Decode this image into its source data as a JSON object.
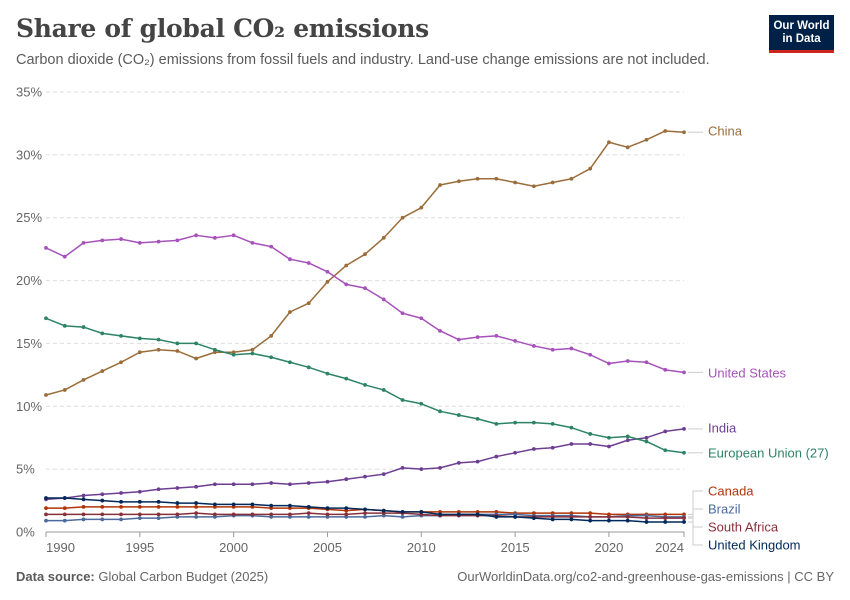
{
  "header": {
    "title": "Share of global CO₂ emissions",
    "subtitle": "Carbon dioxide (CO₂) emissions from fossil fuels and industry. Land-use change emissions are not included.",
    "logo_line1": "Our World",
    "logo_line2": "in Data"
  },
  "footer": {
    "source_label": "Data source:",
    "source_value": "Global Carbon Budget (2025)",
    "credit": "OurWorldinData.org/co2-and-greenhouse-gas-emissions | CC BY"
  },
  "chart_data": {
    "type": "line",
    "title": "Share of global CO₂ emissions",
    "subtitle": "Carbon dioxide (CO₂) emissions from fossil fuels and industry. Land-use change emissions are not included.",
    "xlabel": "",
    "ylabel": "",
    "xlim": [
      1990,
      2024
    ],
    "ylim": [
      0,
      35
    ],
    "x_ticks": [
      1990,
      1995,
      2000,
      2005,
      2010,
      2015,
      2020,
      2024
    ],
    "y_ticks": [
      0,
      5,
      10,
      15,
      20,
      25,
      30,
      35
    ],
    "y_tick_labels": [
      "0%",
      "5%",
      "10%",
      "15%",
      "20%",
      "25%",
      "30%",
      "35%"
    ],
    "grid": "horizontal dashed",
    "legend": "line labels at right",
    "x": [
      1990,
      1991,
      1992,
      1993,
      1994,
      1995,
      1996,
      1997,
      1998,
      1999,
      2000,
      2001,
      2002,
      2003,
      2004,
      2005,
      2006,
      2007,
      2008,
      2009,
      2010,
      2011,
      2012,
      2013,
      2014,
      2015,
      2016,
      2017,
      2018,
      2019,
      2020,
      2021,
      2022,
      2023,
      2024
    ],
    "series": [
      {
        "name": "China",
        "color": "#9a6d3a",
        "values": [
          10.9,
          11.3,
          12.1,
          12.8,
          13.5,
          14.3,
          14.5,
          14.4,
          13.8,
          14.3,
          14.3,
          14.5,
          15.6,
          17.5,
          18.2,
          19.9,
          21.2,
          22.1,
          23.4,
          25.0,
          25.8,
          27.6,
          27.9,
          28.1,
          28.1,
          27.8,
          27.5,
          27.8,
          28.1,
          28.9,
          31.0,
          30.6,
          31.2,
          31.9,
          31.8
        ]
      },
      {
        "name": "United States",
        "color": "#a652ba",
        "values": [
          22.6,
          21.9,
          23.0,
          23.2,
          23.3,
          23.0,
          23.1,
          23.2,
          23.6,
          23.4,
          23.6,
          23.0,
          22.7,
          21.7,
          21.4,
          20.7,
          19.7,
          19.4,
          18.5,
          17.4,
          17.0,
          16.0,
          15.3,
          15.5,
          15.6,
          15.2,
          14.8,
          14.5,
          14.6,
          14.1,
          13.4,
          13.6,
          13.5,
          12.9,
          12.7
        ]
      },
      {
        "name": "India",
        "color": "#6d3e91",
        "values": [
          2.6,
          2.7,
          2.9,
          3.0,
          3.1,
          3.2,
          3.4,
          3.5,
          3.6,
          3.8,
          3.8,
          3.8,
          3.9,
          3.8,
          3.9,
          4.0,
          4.2,
          4.4,
          4.6,
          5.1,
          5.0,
          5.1,
          5.5,
          5.6,
          6.0,
          6.3,
          6.6,
          6.7,
          7.0,
          7.0,
          6.8,
          7.3,
          7.5,
          8.0,
          8.2
        ]
      },
      {
        "name": "European Union (27)",
        "color": "#2c8465",
        "values": [
          17.0,
          16.4,
          16.3,
          15.8,
          15.6,
          15.4,
          15.3,
          15.0,
          15.0,
          14.5,
          14.1,
          14.2,
          13.9,
          13.5,
          13.1,
          12.6,
          12.2,
          11.7,
          11.3,
          10.5,
          10.2,
          9.6,
          9.3,
          9.0,
          8.6,
          8.7,
          8.7,
          8.6,
          8.3,
          7.8,
          7.5,
          7.6,
          7.2,
          6.5,
          6.3
        ]
      },
      {
        "name": "Canada",
        "color": "#b13507",
        "values": [
          1.9,
          1.9,
          2.0,
          2.0,
          2.0,
          2.0,
          2.0,
          2.0,
          2.0,
          2.0,
          2.0,
          2.0,
          1.9,
          1.9,
          1.9,
          1.8,
          1.7,
          1.8,
          1.7,
          1.6,
          1.6,
          1.6,
          1.6,
          1.6,
          1.6,
          1.5,
          1.5,
          1.5,
          1.5,
          1.5,
          1.4,
          1.4,
          1.4,
          1.4,
          1.4
        ]
      },
      {
        "name": "Brazil",
        "color": "#4c6a9c",
        "values": [
          0.9,
          0.9,
          1.0,
          1.0,
          1.0,
          1.1,
          1.1,
          1.2,
          1.2,
          1.2,
          1.3,
          1.3,
          1.2,
          1.2,
          1.2,
          1.2,
          1.2,
          1.2,
          1.3,
          1.2,
          1.3,
          1.3,
          1.4,
          1.4,
          1.4,
          1.4,
          1.3,
          1.3,
          1.3,
          1.2,
          1.2,
          1.3,
          1.3,
          1.2,
          1.2
        ]
      },
      {
        "name": "South Africa",
        "color": "#883039",
        "values": [
          1.4,
          1.4,
          1.4,
          1.4,
          1.4,
          1.4,
          1.4,
          1.4,
          1.5,
          1.4,
          1.4,
          1.4,
          1.4,
          1.4,
          1.5,
          1.4,
          1.4,
          1.5,
          1.5,
          1.5,
          1.4,
          1.3,
          1.3,
          1.3,
          1.3,
          1.2,
          1.2,
          1.2,
          1.2,
          1.2,
          1.2,
          1.2,
          1.1,
          1.1,
          1.1
        ]
      },
      {
        "name": "United Kingdom",
        "color": "#00295b",
        "values": [
          2.7,
          2.7,
          2.6,
          2.5,
          2.4,
          2.4,
          2.4,
          2.3,
          2.3,
          2.2,
          2.2,
          2.2,
          2.1,
          2.1,
          2.0,
          1.9,
          1.9,
          1.8,
          1.7,
          1.6,
          1.6,
          1.4,
          1.4,
          1.4,
          1.2,
          1.2,
          1.1,
          1.0,
          1.0,
          0.9,
          0.9,
          0.9,
          0.8,
          0.8,
          0.8
        ]
      }
    ]
  }
}
